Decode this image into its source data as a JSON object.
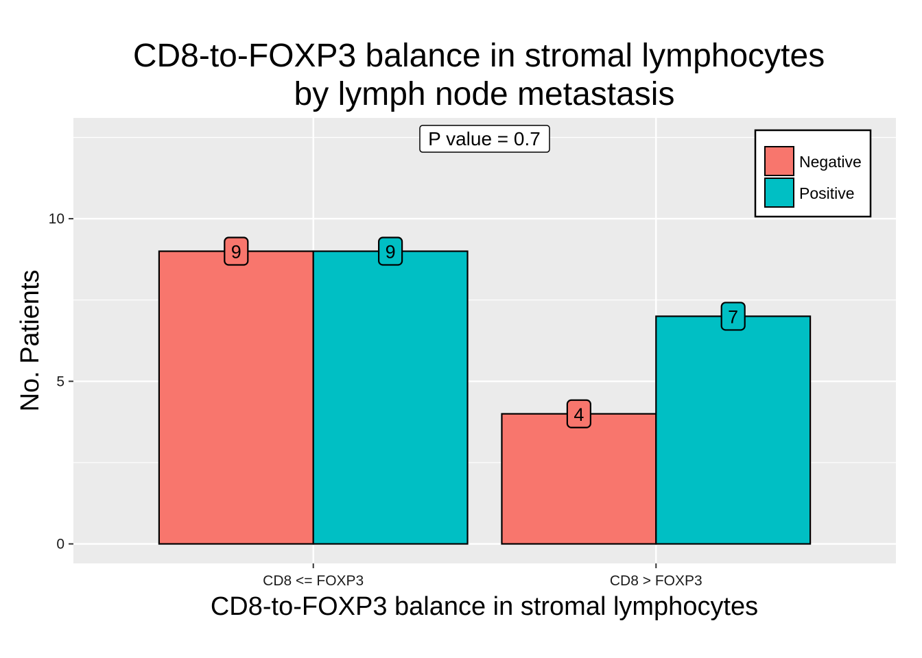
{
  "chart_data": {
    "type": "bar",
    "title": [
      "CD8-to-FOXP3 balance in stromal lymphocytes",
      "by lymph node metastasis"
    ],
    "xlabel": "CD8-to-FOXP3 balance in stromal lymphocytes",
    "ylabel": "No. Patients",
    "categories": [
      "CD8 <= FOXP3",
      "CD8 > FOXP3"
    ],
    "series": [
      {
        "name": "Negative",
        "color": "#F8766D",
        "values": [
          9,
          4
        ]
      },
      {
        "name": "Positive",
        "color": "#00BFC4",
        "values": [
          9,
          7
        ]
      }
    ],
    "ylim": [
      -0.6,
      13.1
    ],
    "yticks": [
      0,
      5,
      10
    ],
    "annotation": "P value = 0.7",
    "legend": {
      "position": "top-right"
    },
    "grid": true,
    "panel_background": "#EBEBEB"
  }
}
